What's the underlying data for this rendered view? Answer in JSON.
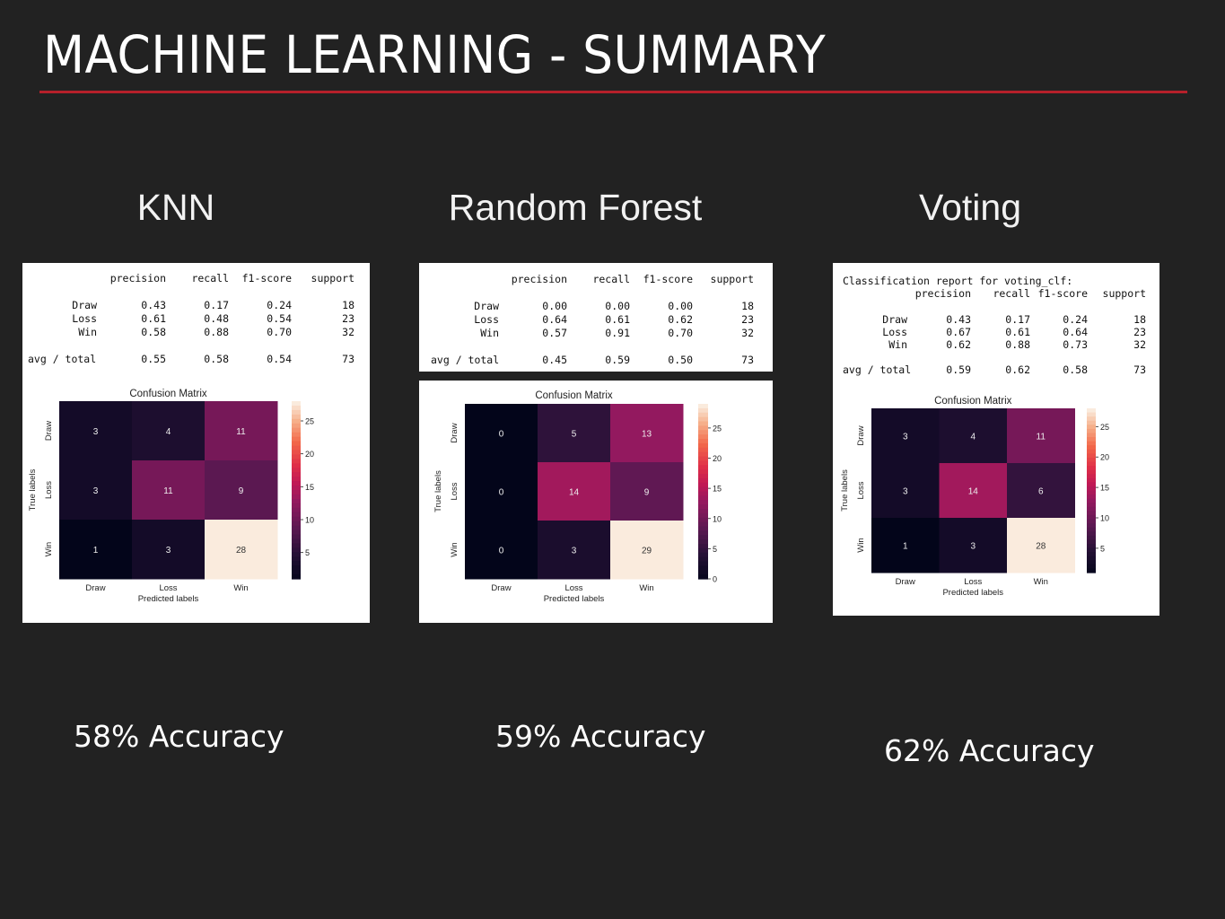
{
  "slide": {
    "title": "MACHINE LEARNING - SUMMARY",
    "accent_color": "#b5202a",
    "background": "#222222"
  },
  "models": [
    {
      "name": "KNN",
      "accuracy_label": "58% Accuracy",
      "report": {
        "caption": "",
        "headers": [
          "precision",
          "recall",
          "f1-score",
          "support"
        ],
        "rows": [
          {
            "label": "Draw",
            "values": [
              "0.43",
              "0.17",
              "0.24",
              "18"
            ]
          },
          {
            "label": "Loss",
            "values": [
              "0.61",
              "0.48",
              "0.54",
              "23"
            ]
          },
          {
            "label": "Win",
            "values": [
              "0.58",
              "0.88",
              "0.70",
              "32"
            ]
          }
        ],
        "total": {
          "label": "avg / total",
          "values": [
            "0.55",
            "0.58",
            "0.54",
            "73"
          ]
        }
      }
    },
    {
      "name": "Random Forest",
      "accuracy_label": "59% Accuracy",
      "report": {
        "caption": "",
        "headers": [
          "precision",
          "recall",
          "f1-score",
          "support"
        ],
        "rows": [
          {
            "label": "Draw",
            "values": [
              "0.00",
              "0.00",
              "0.00",
              "18"
            ]
          },
          {
            "label": "Loss",
            "values": [
              "0.64",
              "0.61",
              "0.62",
              "23"
            ]
          },
          {
            "label": "Win",
            "values": [
              "0.57",
              "0.91",
              "0.70",
              "32"
            ]
          }
        ],
        "total": {
          "label": "avg / total",
          "values": [
            "0.45",
            "0.59",
            "0.50",
            "73"
          ]
        }
      }
    },
    {
      "name": "Voting",
      "accuracy_label": "62% Accuracy",
      "report": {
        "caption": "Classification report for voting_clf:",
        "headers": [
          "precision",
          "recall",
          "f1-score",
          "support"
        ],
        "rows": [
          {
            "label": "Draw",
            "values": [
              "0.43",
              "0.17",
              "0.24",
              "18"
            ]
          },
          {
            "label": "Loss",
            "values": [
              "0.67",
              "0.61",
              "0.64",
              "23"
            ]
          },
          {
            "label": "Win",
            "values": [
              "0.62",
              "0.88",
              "0.73",
              "32"
            ]
          }
        ],
        "total": {
          "label": "avg / total",
          "values": [
            "0.59",
            "0.62",
            "0.58",
            "73"
          ]
        }
      }
    }
  ],
  "chart_data": [
    {
      "type": "heatmap",
      "title": "Confusion Matrix",
      "xlabel": "Predicted labels",
      "ylabel": "True labels",
      "x_categories": [
        "Draw",
        "Loss",
        "Win"
      ],
      "y_categories": [
        "Draw",
        "Loss",
        "Win"
      ],
      "values": [
        [
          3,
          4,
          11
        ],
        [
          3,
          11,
          9
        ],
        [
          1,
          3,
          28
        ]
      ],
      "colorbar_ticks": [
        5,
        10,
        15,
        20,
        25
      ],
      "colorbar_range": [
        1,
        28
      ]
    },
    {
      "type": "heatmap",
      "title": "Confusion Matrix",
      "xlabel": "Predicted labels",
      "ylabel": "True labels",
      "x_categories": [
        "Draw",
        "Loss",
        "Win"
      ],
      "y_categories": [
        "Draw",
        "Loss",
        "Win"
      ],
      "values": [
        [
          0,
          5,
          13
        ],
        [
          0,
          14,
          9
        ],
        [
          0,
          3,
          29
        ]
      ],
      "colorbar_ticks": [
        0,
        5,
        10,
        15,
        20,
        25
      ],
      "colorbar_range": [
        0,
        29
      ]
    },
    {
      "type": "heatmap",
      "title": "Confusion Matrix",
      "xlabel": "Predicted labels",
      "ylabel": "True labels",
      "x_categories": [
        "Draw",
        "Loss",
        "Win"
      ],
      "y_categories": [
        "Draw",
        "Loss",
        "Win"
      ],
      "values": [
        [
          3,
          4,
          11
        ],
        [
          3,
          14,
          6
        ],
        [
          1,
          3,
          28
        ]
      ],
      "colorbar_ticks": [
        5,
        10,
        15,
        20,
        25
      ],
      "colorbar_range": [
        1,
        28
      ]
    }
  ]
}
